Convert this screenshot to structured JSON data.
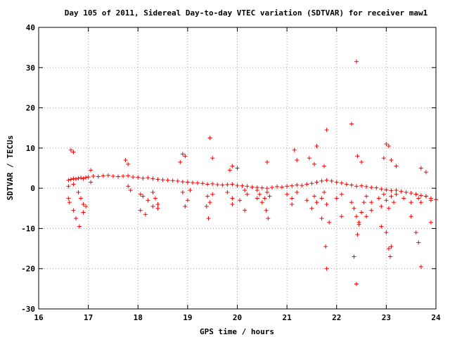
{
  "chart_data": {
    "type": "scatter",
    "title": "Day 105 of 2011, Sidereal Day-to-day VTEC variation (SDTVAR) for receiver maw1",
    "xlabel": "GPS time / hours",
    "ylabel": "SDTVAR / TECUs",
    "xlim": [
      16,
      24
    ],
    "ylim": [
      -30,
      40
    ],
    "xticks": [
      16,
      17,
      18,
      19,
      20,
      21,
      22,
      23,
      24
    ],
    "yticks": [
      -30,
      -20,
      -10,
      0,
      10,
      20,
      30,
      40
    ],
    "grid": true,
    "marker": "+",
    "color": "#ff0000",
    "series": [
      {
        "name": "SDTVAR",
        "x": [
          16.6,
          16.65,
          16.7,
          16.75,
          16.8,
          16.85,
          16.9,
          16.95,
          17.0,
          17.1,
          17.2,
          17.3,
          17.4,
          17.5,
          17.6,
          17.7,
          17.8,
          17.9,
          18.0,
          18.1,
          18.2,
          18.3,
          18.4,
          18.5,
          18.6,
          18.7,
          18.8,
          18.9,
          19.0,
          19.1,
          19.2,
          19.3,
          19.4,
          19.5,
          19.6,
          19.7,
          19.8,
          19.9,
          20.0,
          20.1,
          20.2,
          20.3,
          20.4,
          20.5,
          20.6,
          20.7,
          20.8,
          20.9,
          21.0,
          21.1,
          21.2,
          21.3,
          21.4,
          21.5,
          21.6,
          21.7,
          21.8,
          21.9,
          22.0,
          22.1,
          22.2,
          22.3,
          22.4,
          22.5,
          22.6,
          22.7,
          22.8,
          22.9,
          23.0,
          23.1,
          23.2,
          23.3,
          23.4,
          23.5,
          23.6,
          23.7,
          23.8,
          23.9,
          24.0,
          16.6,
          16.7,
          16.8,
          16.85,
          16.9,
          17.05,
          17.8,
          17.85,
          18.05,
          18.1,
          18.2,
          18.3,
          18.35,
          18.4,
          18.9,
          19.0,
          19.05,
          19.4,
          19.45,
          19.5,
          19.8,
          19.9,
          20.15,
          20.2,
          20.4,
          20.45,
          20.55,
          20.6,
          20.65,
          21.0,
          21.1,
          21.2,
          21.4,
          21.55,
          21.6,
          21.7,
          21.75,
          21.8,
          22.0,
          22.1,
          22.3,
          22.35,
          22.4,
          22.45,
          22.5,
          22.55,
          22.6,
          22.7,
          22.85,
          22.9,
          22.95,
          23.0,
          23.05,
          23.1,
          23.15,
          23.2,
          23.35,
          23.5,
          23.6,
          23.65,
          23.7,
          23.8,
          23.9,
          16.6,
          16.62,
          16.7,
          16.75,
          16.82,
          16.9,
          16.95,
          18.05,
          18.15,
          18.3,
          18.4,
          18.95,
          19.0,
          19.38,
          19.42,
          19.9,
          20.05,
          20.15,
          20.4,
          20.5,
          20.58,
          20.62,
          21.1,
          21.5,
          21.7,
          21.78,
          21.8,
          21.85,
          22.1,
          22.35,
          22.4,
          22.42,
          22.45,
          22.5,
          22.6,
          22.7,
          22.9,
          23.0,
          23.05,
          23.08,
          23.1,
          23.5,
          23.6,
          23.65,
          23.7,
          23.9,
          16.65,
          16.7,
          17.05,
          17.75,
          17.8,
          18.85,
          18.9,
          18.95,
          19.45,
          19.5,
          19.85,
          19.9,
          20.0,
          20.6,
          21.15,
          21.2,
          21.45,
          21.55,
          21.6,
          21.75,
          21.8,
          22.3,
          22.4,
          22.42,
          22.5,
          22.95,
          23.0,
          23.05,
          23.1,
          23.2,
          23.7,
          23.8
        ],
        "y": [
          2.0,
          2.2,
          2.4,
          2.3,
          2.5,
          2.6,
          2.4,
          2.7,
          2.8,
          3.0,
          2.9,
          3.1,
          3.2,
          3.0,
          2.9,
          3.0,
          3.1,
          2.8,
          2.7,
          2.5,
          2.6,
          2.4,
          2.2,
          2.1,
          2.0,
          1.9,
          1.8,
          1.6,
          1.5,
          1.4,
          1.3,
          1.2,
          1.0,
          1.1,
          0.9,
          0.8,
          0.9,
          1.0,
          0.7,
          0.6,
          0.5,
          0.3,
          0.2,
          0.1,
          0.0,
          0.2,
          0.4,
          0.3,
          0.5,
          0.6,
          0.8,
          0.7,
          1.0,
          1.2,
          1.5,
          1.8,
          2.0,
          1.8,
          1.5,
          1.3,
          1.0,
          0.8,
          0.5,
          0.6,
          0.4,
          0.2,
          0.1,
          -0.2,
          -0.4,
          -0.6,
          -0.5,
          -0.8,
          -1.0,
          -1.2,
          -1.5,
          -1.8,
          -2.0,
          -2.5,
          -2.8,
          0.5,
          1.0,
          -1.0,
          -2.5,
          -4.0,
          1.5,
          0.5,
          -0.5,
          -1.5,
          -2.0,
          -3.0,
          -1.0,
          -2.5,
          -4.0,
          -1.0,
          1.5,
          -0.5,
          -2.0,
          -3.5,
          -1.5,
          -1.0,
          -2.5,
          -0.5,
          -1.5,
          -0.5,
          -1.5,
          -2.5,
          -1.0,
          -2.0,
          -1.5,
          -2.5,
          -1.0,
          -3.0,
          -2.0,
          -3.5,
          -2.5,
          -1.0,
          -4.0,
          -2.5,
          -1.5,
          -3.5,
          -5.0,
          -7.0,
          -9.0,
          -6.0,
          -3.5,
          -2.0,
          -3.5,
          -2.5,
          -4.5,
          -1.5,
          -3.0,
          -5.0,
          -2.0,
          -3.5,
          -1.5,
          -2.5,
          -3.5,
          -1.5,
          -2.5,
          -3.5,
          -2.0,
          -3.0,
          -2.5,
          -3.5,
          -5.5,
          -7.5,
          -9.5,
          -6.0,
          -4.5,
          -5.5,
          -6.5,
          -4.5,
          -5.0,
          -4.5,
          -3.0,
          -4.5,
          -7.5,
          -4.0,
          -3.0,
          -5.5,
          -2.5,
          -3.5,
          -5.5,
          -7.5,
          -4.0,
          -5.0,
          -7.5,
          -14.5,
          -20.0,
          -8.5,
          -7.0,
          -17.0,
          -23.8,
          -11.5,
          -8.5,
          -6.0,
          -7.0,
          -5.5,
          -9.5,
          -11.0,
          -15.0,
          -17.0,
          -14.5,
          -7.0,
          -11.0,
          -13.5,
          -19.5,
          -8.5,
          9.5,
          9.0,
          4.5,
          7.0,
          6.0,
          6.5,
          8.5,
          8.0,
          12.5,
          7.5,
          4.5,
          5.5,
          5.0,
          6.5,
          9.5,
          7.0,
          7.5,
          6.0,
          10.5,
          5.5,
          14.5,
          16.0,
          31.5,
          8.0,
          6.5,
          7.5,
          11.0,
          10.5,
          7.0,
          5.5,
          5.0,
          4.0
        ]
      }
    ]
  }
}
